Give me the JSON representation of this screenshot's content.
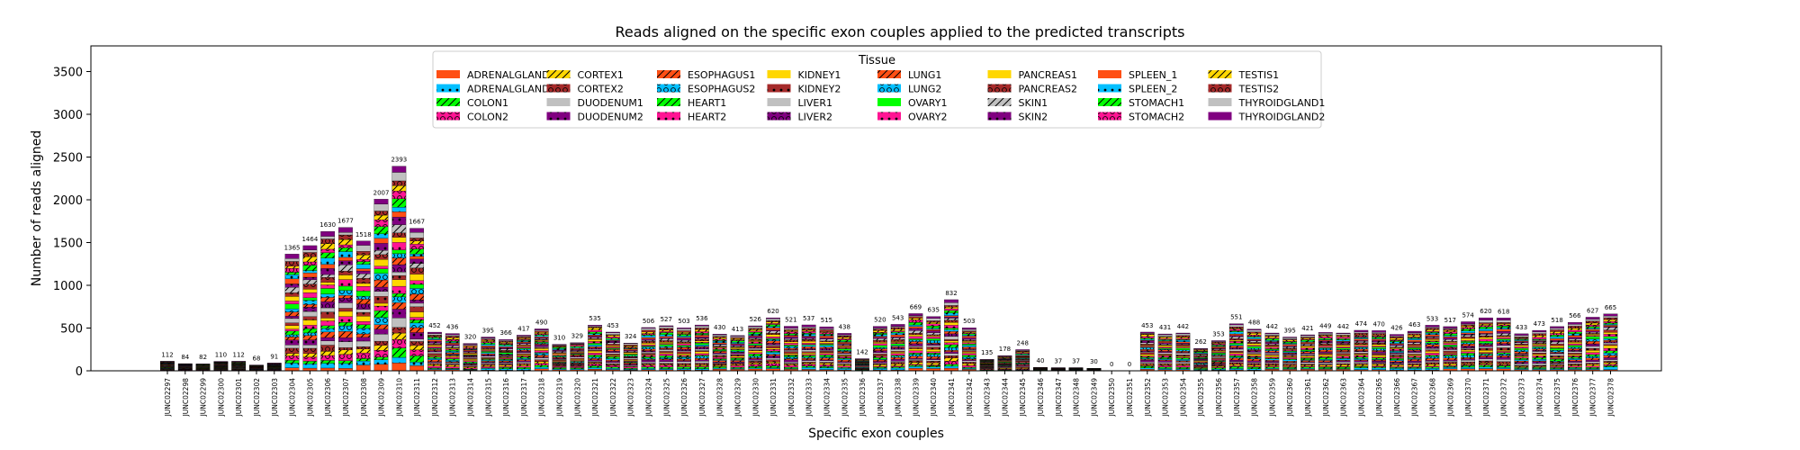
{
  "chart_data": {
    "type": "bar",
    "stacked": true,
    "title": "Reads aligned on the specific exon couples applied to the predicted transcripts",
    "xlabel": "Specific exon couples",
    "ylabel": "Number of reads aligned",
    "ylim": [
      0,
      3800
    ],
    "yticks": [
      0,
      500,
      1000,
      1500,
      2000,
      2500,
      3000,
      3500
    ],
    "grid": false,
    "legend": {
      "title": "Tissue",
      "placement": "top-center",
      "columns": 8
    },
    "categories": [
      "JUNC02297",
      "JUNC02298",
      "JUNC02299",
      "JUNC02300",
      "JUNC02301",
      "JUNC02302",
      "JUNC02303",
      "JUNC02304",
      "JUNC02305",
      "JUNC02306",
      "JUNC02307",
      "JUNC02308",
      "JUNC02309",
      "JUNC02310",
      "JUNC02311",
      "JUNC02312",
      "JUNC02313",
      "JUNC02314",
      "JUNC02315",
      "JUNC02316",
      "JUNC02317",
      "JUNC02318",
      "JUNC02319",
      "JUNC02320",
      "JUNC02321",
      "JUNC02322",
      "JUNC02323",
      "JUNC02324",
      "JUNC02325",
      "JUNC02326",
      "JUNC02327",
      "JUNC02328",
      "JUNC02329",
      "JUNC02330",
      "JUNC02331",
      "JUNC02332",
      "JUNC02333",
      "JUNC02334",
      "JUNC02335",
      "JUNC02336",
      "JUNC02337",
      "JUNC02338",
      "JUNC02339",
      "JUNC02340",
      "JUNC02341",
      "JUNC02342",
      "JUNC02343",
      "JUNC02344",
      "JUNC02345",
      "JUNC02346",
      "JUNC02347",
      "JUNC02348",
      "JUNC02349",
      "JUNC02350",
      "JUNC02351",
      "JUNC02352",
      "JUNC02353",
      "JUNC02354",
      "JUNC02355",
      "JUNC02356",
      "JUNC02357",
      "JUNC02358",
      "JUNC02359",
      "JUNC02360",
      "JUNC02361",
      "JUNC02362",
      "JUNC02363",
      "JUNC02364",
      "JUNC02365",
      "JUNC02366",
      "JUNC02367",
      "JUNC02368",
      "JUNC02369",
      "JUNC02370",
      "JUNC02371",
      "JUNC02372",
      "JUNC02373",
      "JUNC02374",
      "JUNC02375",
      "JUNC02376",
      "JUNC02377",
      "JUNC02378"
    ],
    "totals": [
      112,
      84,
      82,
      110,
      112,
      68,
      91,
      1365,
      1464,
      1630,
      1677,
      1518,
      2007,
      2393,
      1667,
      452,
      436,
      320,
      395,
      366,
      417,
      490,
      310,
      329,
      535,
      453,
      324,
      506,
      527,
      503,
      536,
      430,
      413,
      526,
      620,
      521,
      537,
      515,
      438,
      142,
      520,
      543,
      669,
      635,
      832,
      503,
      135,
      178,
      248,
      40,
      37,
      37,
      30,
      0,
      0,
      453,
      431,
      442,
      262,
      353,
      551,
      488,
      442,
      395,
      421,
      449,
      442,
      474,
      470,
      426,
      463,
      533,
      517,
      574,
      620,
      618,
      433,
      473,
      518,
      566,
      627,
      665
    ],
    "series": [
      {
        "name": "ADRENALGLAND1",
        "color": "#ff4f14",
        "hatch": ""
      },
      {
        "name": "ADRENALGLAND2",
        "color": "#00bfff",
        "hatch": "dot"
      },
      {
        "name": "COLON1",
        "color": "#00ff00",
        "hatch": "slash"
      },
      {
        "name": "COLON2",
        "color": "#ff1493",
        "hatch": "circle"
      },
      {
        "name": "CORTEX1",
        "color": "#ffd700",
        "hatch": "slash"
      },
      {
        "name": "CORTEX2",
        "color": "#a52a2a",
        "hatch": "circle"
      },
      {
        "name": "DUODENUM1",
        "color": "#c0c0c0",
        "hatch": ""
      },
      {
        "name": "DUODENUM2",
        "color": "#800080",
        "hatch": "dot"
      },
      {
        "name": "ESOPHAGUS1",
        "color": "#ff4f14",
        "hatch": "slash"
      },
      {
        "name": "ESOPHAGUS2",
        "color": "#00bfff",
        "hatch": "circle"
      },
      {
        "name": "HEART1",
        "color": "#00ff00",
        "hatch": "slash"
      },
      {
        "name": "HEART2",
        "color": "#ff1493",
        "hatch": "dot"
      },
      {
        "name": "KIDNEY1",
        "color": "#ffd700",
        "hatch": ""
      },
      {
        "name": "KIDNEY2",
        "color": "#a52a2a",
        "hatch": "dot"
      },
      {
        "name": "LIVER1",
        "color": "#c0c0c0",
        "hatch": ""
      },
      {
        "name": "LIVER2",
        "color": "#800080",
        "hatch": "circle"
      },
      {
        "name": "LUNG1",
        "color": "#ff4f14",
        "hatch": "slash"
      },
      {
        "name": "LUNG2",
        "color": "#00bfff",
        "hatch": "circle"
      },
      {
        "name": "OVARY1",
        "color": "#00ff00",
        "hatch": ""
      },
      {
        "name": "OVARY2",
        "color": "#ff1493",
        "hatch": "dot"
      },
      {
        "name": "PANCREAS1",
        "color": "#ffd700",
        "hatch": ""
      },
      {
        "name": "PANCREAS2",
        "color": "#a52a2a",
        "hatch": "circle"
      },
      {
        "name": "SKIN1",
        "color": "#c0c0c0",
        "hatch": "slash"
      },
      {
        "name": "SKIN2",
        "color": "#800080",
        "hatch": "dot"
      },
      {
        "name": "SPLEEN_1",
        "color": "#ff4f14",
        "hatch": ""
      },
      {
        "name": "SPLEEN_2",
        "color": "#00bfff",
        "hatch": "dot"
      },
      {
        "name": "STOMACH1",
        "color": "#00ff00",
        "hatch": "slash"
      },
      {
        "name": "STOMACH2",
        "color": "#ff1493",
        "hatch": "circle"
      },
      {
        "name": "TESTIS1",
        "color": "#ffd700",
        "hatch": "slash"
      },
      {
        "name": "TESTIS2",
        "color": "#a52a2a",
        "hatch": "circle"
      },
      {
        "name": "THYROIDGLAND1",
        "color": "#c0c0c0",
        "hatch": ""
      },
      {
        "name": "THYROIDGLAND2",
        "color": "#800080",
        "hatch": ""
      }
    ]
  }
}
